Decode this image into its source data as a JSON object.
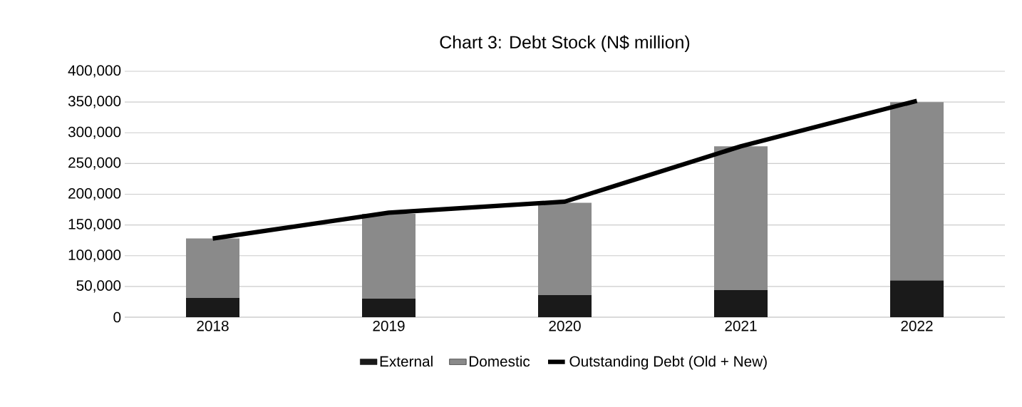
{
  "chart_data": {
    "type": "bar",
    "title": "Chart 3: Debt Stock (N$ million)",
    "stacked": true,
    "categories": [
      "2018",
      "2019",
      "2020",
      "2021",
      "2022"
    ],
    "series": [
      {
        "name": "External",
        "color": "#1a1a1a",
        "values": [
          32000,
          30000,
          36000,
          44000,
          60000
        ]
      },
      {
        "name": "Domestic",
        "color": "#8a8a8a",
        "values": [
          96000,
          138000,
          150000,
          234000,
          290000
        ]
      },
      {
        "name": "Outstanding Debt (Old + New)",
        "type": "line",
        "color": "#000000",
        "values": [
          128000,
          170000,
          188000,
          278000,
          352000
        ]
      }
    ],
    "ylim": [
      0,
      400000
    ],
    "yticks": [
      {
        "value": 0,
        "label": "0"
      },
      {
        "value": 50000,
        "label": "50,000"
      },
      {
        "value": 100000,
        "label": "100,000"
      },
      {
        "value": 150000,
        "label": "150,000"
      },
      {
        "value": 200000,
        "label": "200,000"
      },
      {
        "value": 250000,
        "label": "250,000"
      },
      {
        "value": 300000,
        "label": "300,000"
      },
      {
        "value": 350000,
        "label": "350,000"
      },
      {
        "value": 400000,
        "label": "400,000"
      }
    ],
    "grid": "y",
    "legend": "bottom"
  }
}
